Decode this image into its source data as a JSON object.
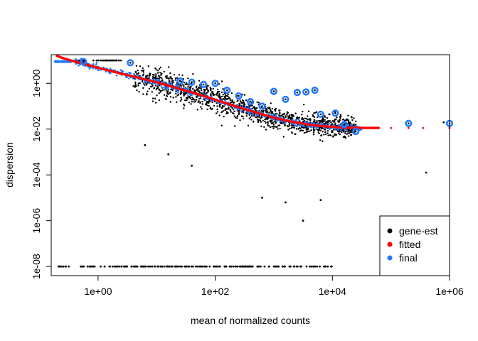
{
  "chart_data": {
    "type": "scatter",
    "title": "",
    "xlabel": "mean of normalized counts",
    "ylabel": "dispersion",
    "x_scale": "log10",
    "y_scale": "log10",
    "xlim_log10": [
      -0.8,
      6.0
    ],
    "ylim_log10": [
      -8.4,
      1.25
    ],
    "x_ticks": [
      {
        "value_log10": 0,
        "label": "1e+00"
      },
      {
        "value_log10": 2,
        "label": "1e+02"
      },
      {
        "value_log10": 4,
        "label": "1e+04"
      },
      {
        "value_log10": 6,
        "label": "1e+06"
      }
    ],
    "y_ticks": [
      {
        "value_log10": 0,
        "label": "1e+00"
      },
      {
        "value_log10": -2,
        "label": "1e-02"
      },
      {
        "value_log10": -4,
        "label": "1e-04"
      },
      {
        "value_log10": -6,
        "label": "1e-06"
      },
      {
        "value_log10": -8,
        "label": "1e-08"
      }
    ],
    "legend": {
      "position": "bottom-right",
      "entries": [
        {
          "label": "gene-est",
          "color": "#000000"
        },
        {
          "label": "fitted",
          "color": "#ff0000"
        },
        {
          "label": "final",
          "color": "#1f78ff"
        }
      ]
    },
    "fitted_trend": {
      "description": "red dispersion trend (log10 mean vs log10 dispersion)",
      "color": "#ff0000",
      "points": [
        [
          -0.7,
          1.2
        ],
        [
          -0.6,
          1.1
        ],
        [
          -0.4,
          0.95
        ],
        [
          -0.2,
          0.82
        ],
        [
          0.0,
          0.68
        ],
        [
          0.2,
          0.55
        ],
        [
          0.4,
          0.42
        ],
        [
          0.6,
          0.3
        ],
        [
          0.8,
          0.17
        ],
        [
          1.0,
          0.05
        ],
        [
          1.2,
          -0.1
        ],
        [
          1.4,
          -0.25
        ],
        [
          1.6,
          -0.4
        ],
        [
          1.8,
          -0.55
        ],
        [
          2.0,
          -0.72
        ],
        [
          2.2,
          -0.88
        ],
        [
          2.4,
          -1.05
        ],
        [
          2.6,
          -1.2
        ],
        [
          2.8,
          -1.35
        ],
        [
          3.0,
          -1.5
        ],
        [
          3.2,
          -1.62
        ],
        [
          3.4,
          -1.72
        ],
        [
          3.6,
          -1.8
        ],
        [
          3.8,
          -1.86
        ],
        [
          4.0,
          -1.9
        ],
        [
          4.2,
          -1.93
        ],
        [
          4.4,
          -1.94
        ],
        [
          4.6,
          -1.95
        ],
        [
          5.0,
          -1.95
        ],
        [
          5.4,
          -1.95
        ],
        [
          6.0,
          -1.95
        ]
      ]
    },
    "final_estimates_low_count": {
      "description": "blue final estimates at low counts",
      "color": "#1f78ff",
      "x_log10": [
        -0.7,
        -0.6,
        -0.5
      ],
      "y_log10": 0.95
    },
    "gene_est_zero_dispersion": {
      "description": "black gene-wise estimates at lower bound 1e-08",
      "color": "#000000",
      "x_log10_range": [
        -0.7,
        4.0
      ],
      "y_log10": -8.0
    },
    "outliers": {
      "description": "blue circled points: dispersion outliers kept as final",
      "color": "#1f78ff",
      "points": [
        [
          -0.25,
          0.95
        ],
        [
          0.55,
          0.9
        ],
        [
          1.4,
          0.1
        ],
        [
          1.6,
          0.05
        ],
        [
          1.8,
          -0.05
        ],
        [
          2.0,
          0.0
        ],
        [
          2.2,
          -0.3
        ],
        [
          2.4,
          -0.55
        ],
        [
          2.6,
          -0.8
        ],
        [
          2.8,
          -1.0
        ],
        [
          3.0,
          -0.35
        ],
        [
          3.2,
          -0.7
        ],
        [
          3.4,
          -0.4
        ],
        [
          3.55,
          -0.38
        ],
        [
          3.7,
          -0.3
        ],
        [
          3.8,
          -1.35
        ],
        [
          4.05,
          -1.3
        ],
        [
          4.2,
          -1.8
        ],
        [
          4.4,
          -2.1
        ],
        [
          5.3,
          -1.75
        ],
        [
          6.0,
          -1.75
        ]
      ]
    },
    "sparse_outliers": {
      "description": "isolated black gene-wise points",
      "color": "#000000",
      "points": [
        [
          0.8,
          -2.7
        ],
        [
          1.2,
          -3.1
        ],
        [
          1.6,
          -3.6
        ],
        [
          2.8,
          -5.0
        ],
        [
          3.2,
          -5.2
        ],
        [
          3.8,
          -5.1
        ],
        [
          3.5,
          -6.0
        ],
        [
          5.6,
          -3.9
        ],
        [
          5.9,
          -1.7
        ]
      ]
    }
  }
}
